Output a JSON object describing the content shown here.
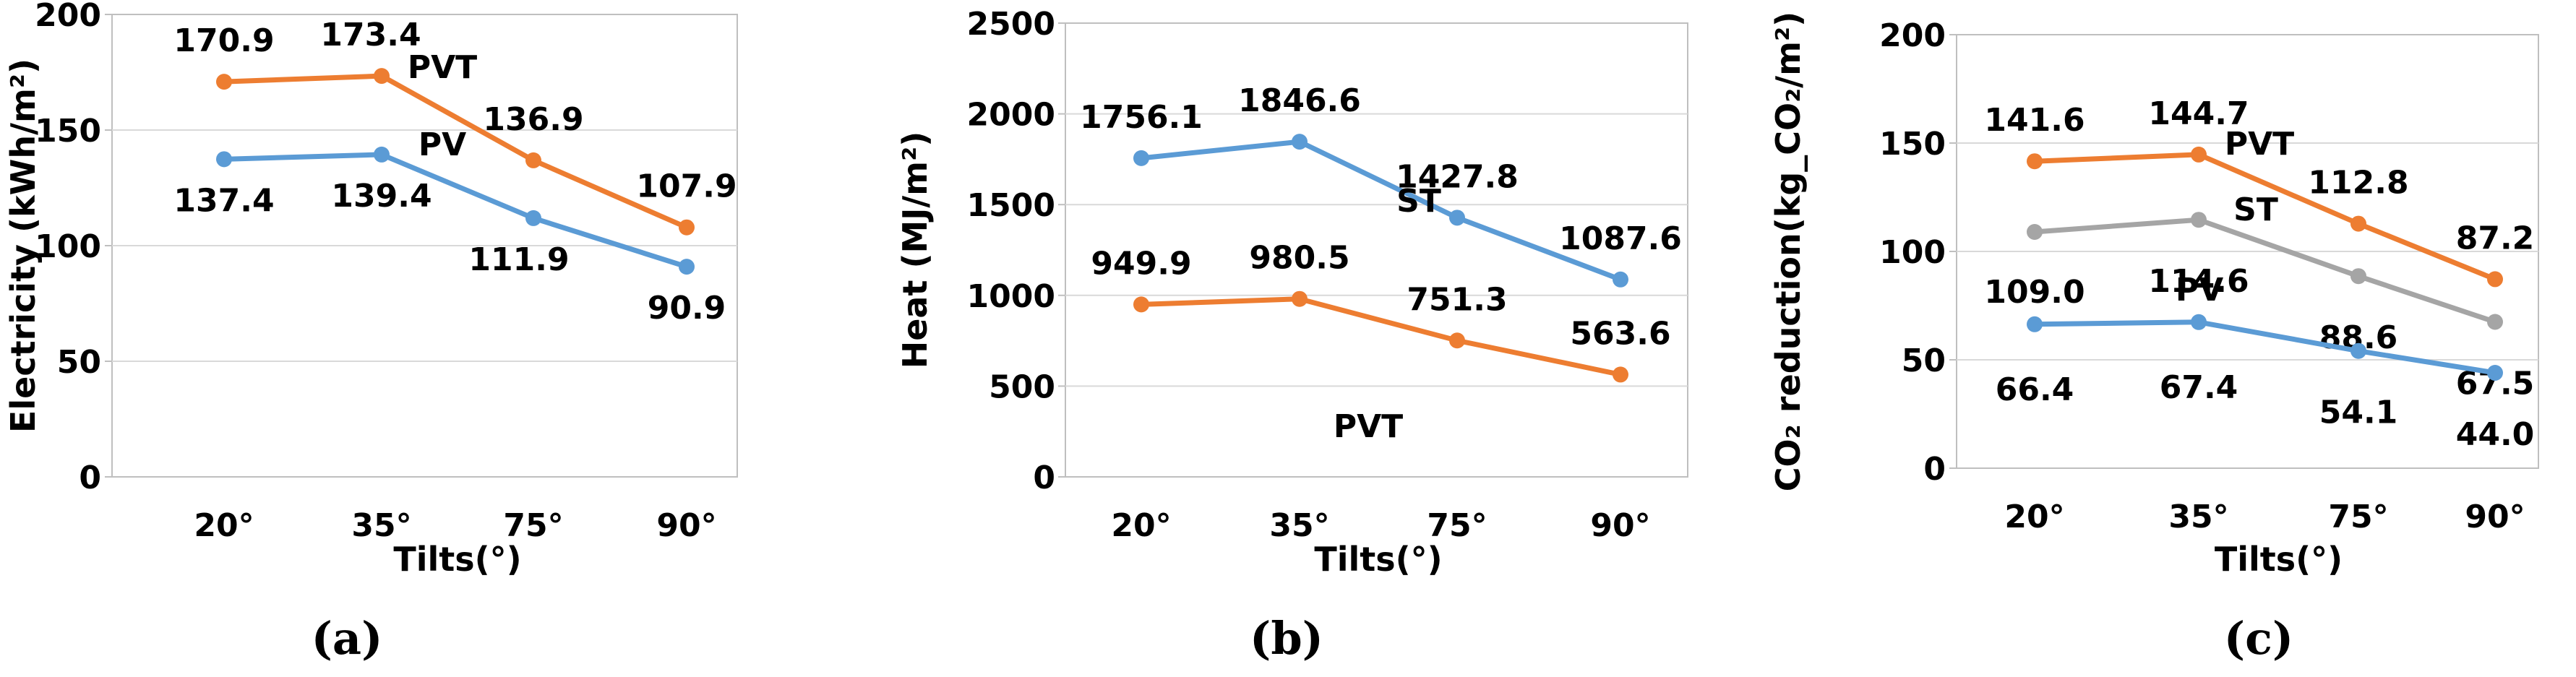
{
  "chart_data": [
    {
      "type": "line",
      "panel_label": "(a)",
      "categories": [
        "20°",
        "35°",
        "75°",
        "90°"
      ],
      "xlabel": "Tilts(°)",
      "ylabel": "Electricity (kWh/m²)",
      "ylim": [
        0,
        200
      ],
      "yticks": [
        "0",
        "50",
        "100",
        "150",
        "200"
      ],
      "grid": true,
      "series": [
        {
          "name": "PVT",
          "color": "#ED7D31",
          "values": [
            170.9,
            173.4,
            136.9,
            107.9
          ],
          "labels": [
            "170.9",
            "173.4",
            "136.9",
            "107.9"
          ]
        },
        {
          "name": "PV",
          "color": "#5B9BD5",
          "values": [
            137.4,
            139.4,
            111.9,
            90.9
          ],
          "labels": [
            "137.4",
            "139.4",
            "111.9",
            "90.9"
          ]
        }
      ]
    },
    {
      "type": "line",
      "panel_label": "(b)",
      "categories": [
        "20°",
        "35°",
        "75°",
        "90°"
      ],
      "xlabel": "Tilts(°)",
      "ylabel": "Heat (MJ/m²)",
      "ylim": [
        0,
        2500
      ],
      "yticks": [
        "0",
        "500",
        "1000",
        "1500",
        "2000",
        "2500"
      ],
      "grid": true,
      "series": [
        {
          "name": "ST",
          "color": "#5B9BD5",
          "values": [
            1756.1,
            1846.6,
            1427.8,
            1087.6
          ],
          "labels": [
            "1756.1",
            "1846.6",
            "1427.8",
            "1087.6"
          ]
        },
        {
          "name": "PVT",
          "color": "#ED7D31",
          "values": [
            949.9,
            980.5,
            751.3,
            563.6
          ],
          "labels": [
            "949.9",
            "980.5",
            "751.3",
            "563.6"
          ]
        }
      ]
    },
    {
      "type": "line",
      "panel_label": "(c)",
      "categories": [
        "20°",
        "35°",
        "75°",
        "90°"
      ],
      "xlabel": "Tilts(°)",
      "ylabel": "CO₂ reduction(kg_CO₂/m²)",
      "ylim": [
        0,
        200
      ],
      "yticks": [
        "0",
        "50",
        "100",
        "150",
        "200"
      ],
      "grid": true,
      "series": [
        {
          "name": "PVT",
          "color": "#ED7D31",
          "values": [
            141.6,
            144.7,
            112.8,
            87.2
          ],
          "labels": [
            "141.6",
            "144.7",
            "112.8",
            "87.2"
          ]
        },
        {
          "name": "ST",
          "color": "#A5A5A5",
          "values": [
            109.0,
            114.6,
            88.6,
            67.5
          ],
          "labels": [
            "109.0",
            "114.6",
            "88.6",
            "67.5"
          ]
        },
        {
          "name": "PV",
          "color": "#5B9BD5",
          "values": [
            66.4,
            67.4,
            54.1,
            44.0
          ],
          "labels": [
            "66.4",
            "67.4",
            "54.1",
            "44.0"
          ]
        }
      ]
    }
  ]
}
